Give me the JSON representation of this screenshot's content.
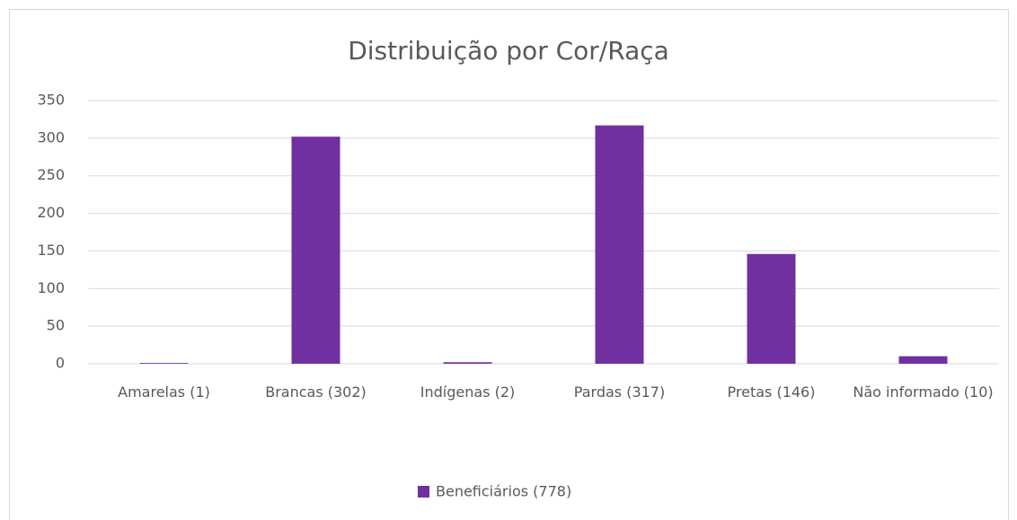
{
  "chart_data": {
    "type": "bar",
    "title": "Distribuição por Cor/Raça",
    "categories": [
      "Amarelas (1)",
      "Brancas (302)",
      "Indígenas (2)",
      "Pardas (317)",
      "Pretas (146)",
      "Não informado (10)"
    ],
    "series": [
      {
        "name": "Beneficiários (778)",
        "color": "#7030a0",
        "values": [
          1,
          302,
          2,
          317,
          146,
          10
        ]
      }
    ],
    "ylim": [
      0,
      350
    ],
    "yticks": [
      0,
      50,
      100,
      150,
      200,
      250,
      300,
      350
    ],
    "grid": true,
    "legend": "bottom"
  }
}
